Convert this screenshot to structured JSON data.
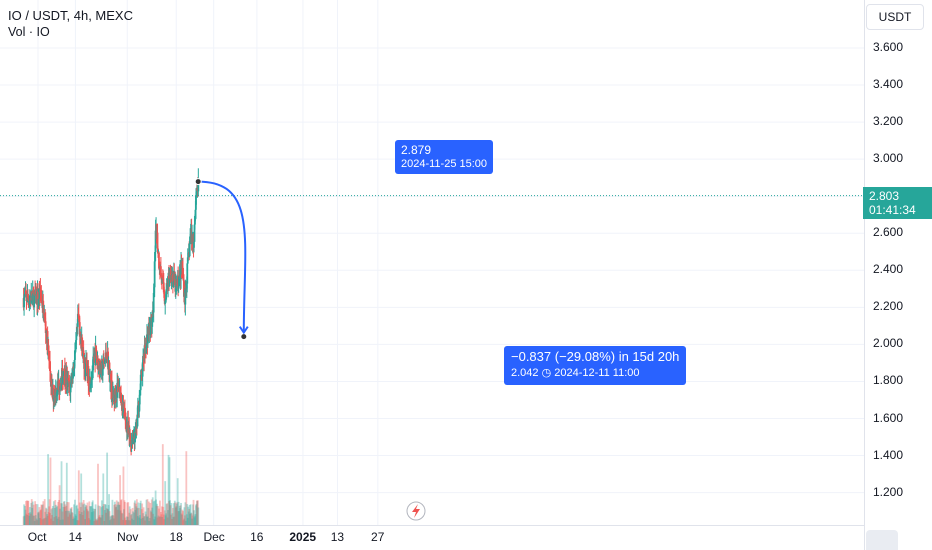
{
  "legend": {
    "title": "IO / USDT, 4h, MEXC",
    "volume": "Vol · IO"
  },
  "currency_button": "USDT",
  "last_price": {
    "value": "2.803",
    "countdown": "01:41:34",
    "color": "#26a69a"
  },
  "high_tooltip": {
    "price": "2.879",
    "datetime": "2024-11-25 15:00"
  },
  "projection": {
    "change": "−0.837 (−29.08%) in 15d 20h",
    "target_price": "2.042",
    "target_datetime": "2024-12-11  11:00",
    "color": "#2962ff"
  },
  "chart_data": {
    "type": "candlestick",
    "title": "IO / USDT, 4h, MEXC",
    "y_ticks": [
      "3.600",
      "3.400",
      "3.200",
      "3.000",
      "2.800",
      "2.600",
      "2.400",
      "2.200",
      "2.000",
      "1.800",
      "1.600",
      "1.400",
      "1.200"
    ],
    "x_ticks": [
      "Oct",
      "14",
      "Nov",
      "18",
      "Dec",
      "16",
      "2025",
      "13",
      "27"
    ],
    "ylim": [
      1.05,
      3.78
    ],
    "up_color": "#26a69a",
    "down_color": "#ef5350",
    "anchors": [
      {
        "date": "2024-10-01",
        "price": 2.25
      },
      {
        "date": "2024-10-02",
        "price": 2.28
      },
      {
        "date": "2024-10-04",
        "price": 2.05
      },
      {
        "date": "2024-10-06",
        "price": 1.72
      },
      {
        "date": "2024-10-08",
        "price": 1.78
      },
      {
        "date": "2024-10-10",
        "price": 1.85
      },
      {
        "date": "2024-10-12",
        "price": 1.75
      },
      {
        "date": "2024-10-14",
        "price": 1.95
      },
      {
        "date": "2024-10-15",
        "price": 2.15
      },
      {
        "date": "2024-10-17",
        "price": 1.9
      },
      {
        "date": "2024-10-19",
        "price": 1.8
      },
      {
        "date": "2024-10-21",
        "price": 1.95
      },
      {
        "date": "2024-10-23",
        "price": 1.85
      },
      {
        "date": "2024-10-25",
        "price": 1.95
      },
      {
        "date": "2024-10-27",
        "price": 1.7
      },
      {
        "date": "2024-10-29",
        "price": 1.78
      },
      {
        "date": "2024-10-31",
        "price": 1.62
      },
      {
        "date": "2024-11-02",
        "price": 1.48
      },
      {
        "date": "2024-11-04",
        "price": 1.52
      },
      {
        "date": "2024-11-06",
        "price": 1.85
      },
      {
        "date": "2024-11-08",
        "price": 2.05
      },
      {
        "date": "2024-11-10",
        "price": 2.15
      },
      {
        "date": "2024-11-11",
        "price": 2.65
      },
      {
        "date": "2024-11-12",
        "price": 2.45
      },
      {
        "date": "2024-11-14",
        "price": 2.25
      },
      {
        "date": "2024-11-16",
        "price": 2.4
      },
      {
        "date": "2024-11-18",
        "price": 2.3
      },
      {
        "date": "2024-11-20",
        "price": 2.42
      },
      {
        "date": "2024-11-21",
        "price": 2.25
      },
      {
        "date": "2024-11-23",
        "price": 2.6
      },
      {
        "date": "2024-11-24",
        "price": 2.55
      },
      {
        "date": "2024-11-25",
        "price": 2.85
      }
    ]
  }
}
